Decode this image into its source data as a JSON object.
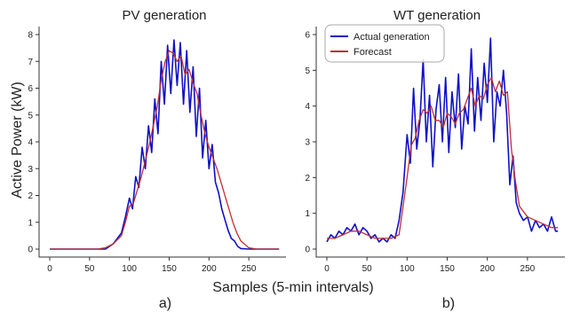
{
  "figure": {
    "ylabel": "Active Power (kW)",
    "xlabel": "Samples (5-min intervals)",
    "sublabels": [
      "a)",
      "b)"
    ]
  },
  "chart_data": [
    {
      "type": "line",
      "title": "PV generation",
      "xlabel": "",
      "ylabel": "Active Power (kW)",
      "xlim": [
        0,
        290
      ],
      "ylim": [
        0,
        8
      ],
      "xticks": [
        0,
        50,
        100,
        150,
        200,
        250
      ],
      "yticks": [
        0,
        1,
        2,
        3,
        4,
        5,
        6,
        7,
        8
      ],
      "legend": null,
      "series": [
        {
          "color": "#1010c8",
          "x": [
            0,
            60,
            70,
            80,
            90,
            95,
            100,
            104,
            108,
            112,
            116,
            120,
            124,
            128,
            132,
            136,
            140,
            144,
            148,
            152,
            156,
            160,
            164,
            168,
            172,
            176,
            180,
            184,
            188,
            192,
            196,
            200,
            204,
            208,
            212,
            216,
            220,
            224,
            228,
            232,
            236,
            240,
            250,
            260,
            270,
            288
          ],
          "y": [
            0,
            0,
            0,
            0.2,
            0.6,
            1.2,
            1.9,
            1.5,
            2.7,
            2.3,
            3.8,
            3.0,
            4.6,
            3.6,
            5.6,
            4.3,
            7.0,
            5.4,
            7.6,
            5.8,
            7.8,
            6.1,
            7.7,
            5.4,
            7.4,
            5.1,
            6.8,
            4.2,
            6.0,
            3.4,
            4.8,
            3.0,
            3.9,
            2.5,
            2.1,
            1.5,
            1.1,
            0.7,
            0.4,
            0.3,
            0.1,
            0.02,
            0,
            0,
            0,
            0
          ]
        },
        {
          "color": "#c03030",
          "x": [
            0,
            60,
            70,
            80,
            90,
            95,
            100,
            105,
            110,
            115,
            120,
            125,
            130,
            135,
            140,
            145,
            150,
            155,
            160,
            165,
            170,
            175,
            180,
            185,
            190,
            195,
            200,
            205,
            210,
            215,
            220,
            225,
            230,
            235,
            240,
            250,
            260,
            270,
            288
          ],
          "y": [
            0,
            0,
            0.05,
            0.2,
            0.5,
            1.0,
            1.6,
            1.7,
            2.2,
            2.7,
            3.3,
            3.9,
            4.6,
            5.3,
            6.3,
            7.0,
            7.4,
            7.3,
            7.0,
            7.2,
            6.5,
            6.7,
            6.2,
            5.8,
            5.0,
            4.3,
            3.8,
            3.4,
            3.0,
            2.5,
            2.0,
            1.5,
            1.0,
            0.6,
            0.3,
            0.05,
            0,
            0,
            0
          ]
        }
      ]
    },
    {
      "type": "line",
      "title": "WT generation",
      "xlabel": "",
      "ylabel": "",
      "xlim": [
        0,
        290
      ],
      "ylim": [
        0,
        6
      ],
      "xticks": [
        0,
        50,
        100,
        150,
        200,
        250
      ],
      "yticks": [
        0,
        1,
        2,
        3,
        4,
        5,
        6
      ],
      "legend": "top-left",
      "series": [
        {
          "name": "Actual generation",
          "color": "#1010c8",
          "x": [
            0,
            5,
            10,
            15,
            20,
            25,
            30,
            35,
            40,
            45,
            50,
            55,
            60,
            65,
            70,
            75,
            80,
            85,
            90,
            95,
            100,
            104,
            108,
            112,
            116,
            120,
            124,
            128,
            132,
            136,
            140,
            144,
            148,
            152,
            156,
            160,
            164,
            168,
            172,
            176,
            180,
            184,
            188,
            192,
            196,
            200,
            204,
            208,
            212,
            216,
            220,
            224,
            228,
            232,
            236,
            240,
            245,
            250,
            255,
            260,
            265,
            270,
            275,
            280,
            285,
            288
          ],
          "y": [
            0.2,
            0.4,
            0.3,
            0.5,
            0.4,
            0.6,
            0.5,
            0.7,
            0.4,
            0.6,
            0.5,
            0.3,
            0.4,
            0.2,
            0.3,
            0.2,
            0.4,
            0.3,
            0.8,
            1.6,
            3.2,
            2.4,
            4.5,
            2.8,
            3.6,
            5.3,
            3.0,
            4.3,
            2.3,
            3.9,
            4.6,
            3.0,
            4.8,
            2.7,
            4.4,
            3.4,
            4.9,
            2.8,
            4.0,
            3.5,
            5.6,
            3.3,
            4.8,
            3.6,
            5.2,
            4.1,
            5.9,
            3.0,
            4.4,
            4.0,
            5.0,
            3.8,
            1.8,
            2.6,
            1.3,
            1.0,
            0.8,
            0.9,
            0.5,
            0.8,
            0.6,
            0.7,
            0.5,
            0.9,
            0.5,
            0.5
          ]
        },
        {
          "name": "Forecast",
          "color": "#c03030",
          "x": [
            0,
            10,
            20,
            30,
            40,
            50,
            60,
            70,
            80,
            90,
            95,
            100,
            105,
            110,
            115,
            120,
            125,
            130,
            135,
            140,
            145,
            150,
            155,
            160,
            165,
            170,
            175,
            180,
            185,
            190,
            195,
            200,
            205,
            210,
            215,
            220,
            225,
            230,
            235,
            240,
            250,
            260,
            270,
            280,
            288
          ],
          "y": [
            0.3,
            0.3,
            0.4,
            0.5,
            0.5,
            0.4,
            0.3,
            0.3,
            0.3,
            0.4,
            1.2,
            2.0,
            2.9,
            3.1,
            3.6,
            3.9,
            3.8,
            4.0,
            3.6,
            3.6,
            3.4,
            3.8,
            3.7,
            3.5,
            3.8,
            3.9,
            4.2,
            4.5,
            4.0,
            4.3,
            4.2,
            4.6,
            4.8,
            4.4,
            4.7,
            4.3,
            4.4,
            2.8,
            1.9,
            1.2,
            0.9,
            0.8,
            0.7,
            0.6,
            0.6
          ]
        }
      ]
    }
  ]
}
